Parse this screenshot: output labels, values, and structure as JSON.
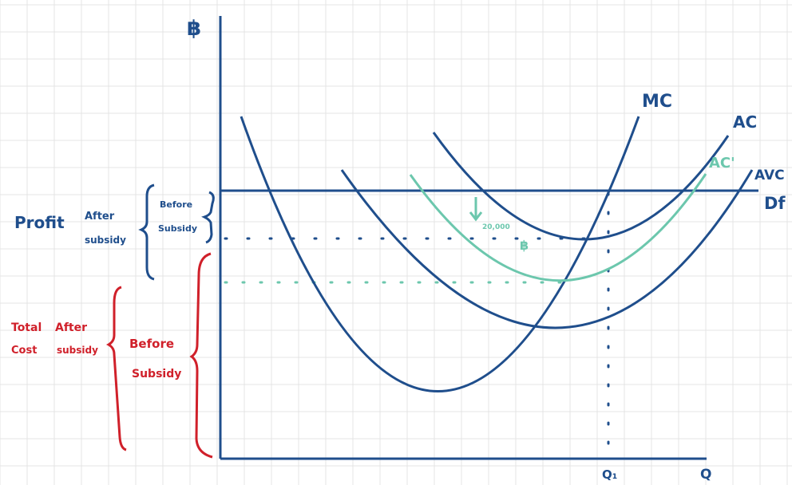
{
  "colors": {
    "grid": "#e4e4e4",
    "blue": "#1f4e8c",
    "teal": "#6cc7ad",
    "red": "#d0202a"
  },
  "axes": {
    "y_label": "฿",
    "x_label": "Q",
    "q1_label": "Q₁"
  },
  "curves": {
    "mc": "MC",
    "ac": "AC",
    "ac_prime": "AC'",
    "avc": "AVC",
    "df": "Df"
  },
  "annotations": {
    "subsidy_amount": "20,000",
    "subsidy_unit": "฿",
    "profit": "Profit",
    "after": "After",
    "subsidy": "subsidy",
    "before": "Before",
    "subsidy_cap": "Subsidy",
    "total": "Total",
    "cost": "Cost",
    "after_red": "After",
    "subsidy_red": "subsidy",
    "before_red": "Before",
    "subsidy_red2": "Subsidy"
  },
  "icons": {
    "arrow": "down-arrow-icon"
  }
}
